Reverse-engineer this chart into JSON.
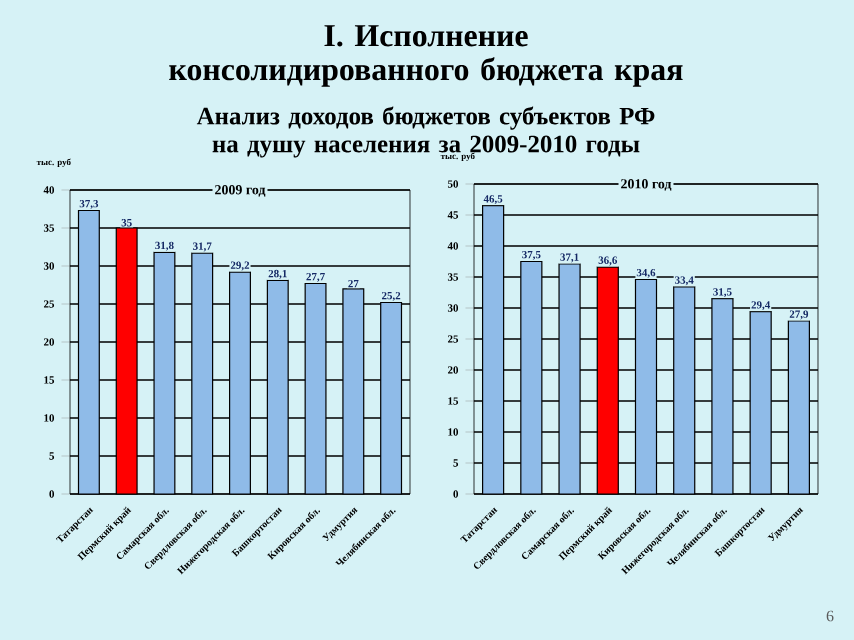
{
  "chart_data": [
    {
      "type": "bar",
      "title": "2009 год",
      "ylabel": "тыс. руб",
      "annotations": [
        "I. Исполнение консолидированного бюджета края",
        "Анализ доходов бюджетов субъектов РФ на душу населения за 2009-2010 годы"
      ],
      "categories": [
        "Татарстан",
        "Пермский край",
        "Самарская обл.",
        "Свердловская обл.",
        "Нижегородская обл.",
        "Башкортостан",
        "Кировская обл.",
        "Удмуртия",
        "Челябинская обл."
      ],
      "values": [
        37.3,
        35,
        31.8,
        31.7,
        29.2,
        28.1,
        27.7,
        27,
        25.2
      ],
      "value_labels": [
        "37,3",
        "35",
        "31,8",
        "31,7",
        "29,2",
        "28,1",
        "27,7",
        "27",
        "25,2"
      ],
      "colors": [
        "#8fbbe8",
        "#ff0000",
        "#8fbbe8",
        "#8fbbe8",
        "#8fbbe8",
        "#8fbbe8",
        "#8fbbe8",
        "#8fbbe8",
        "#8fbbe8"
      ],
      "ylim": [
        0,
        40
      ],
      "yticks": [
        0,
        5,
        10,
        15,
        20,
        25,
        30,
        35,
        40
      ],
      "grid": "y"
    },
    {
      "type": "bar",
      "title": "2010 год",
      "ylabel": "тыс. руб",
      "annotations": [
        "6"
      ],
      "categories": [
        "Татарстан",
        "Свердловская обл.",
        "Самарская обл.",
        "Пермский край",
        "Кировская обл.",
        "Нижегородская обл.",
        "Челябинская обл.",
        "Башкортостан",
        "Удмуртия"
      ],
      "values": [
        46.5,
        37.5,
        37.1,
        36.6,
        34.6,
        33.4,
        31.5,
        29.4,
        27.9
      ],
      "value_labels": [
        "46,5",
        "37,5",
        "37,1",
        "36,6",
        "34,6",
        "33,4",
        "31,5",
        "29,4",
        "27,9"
      ],
      "colors": [
        "#8fbbe8",
        "#8fbbe8",
        "#8fbbe8",
        "#ff0000",
        "#8fbbe8",
        "#8fbbe8",
        "#8fbbe8",
        "#8fbbe8",
        "#8fbbe8"
      ],
      "ylim": [
        0,
        50
      ],
      "yticks": [
        0,
        5,
        10,
        15,
        20,
        25,
        30,
        35,
        40,
        45,
        50
      ],
      "grid": "y"
    }
  ]
}
